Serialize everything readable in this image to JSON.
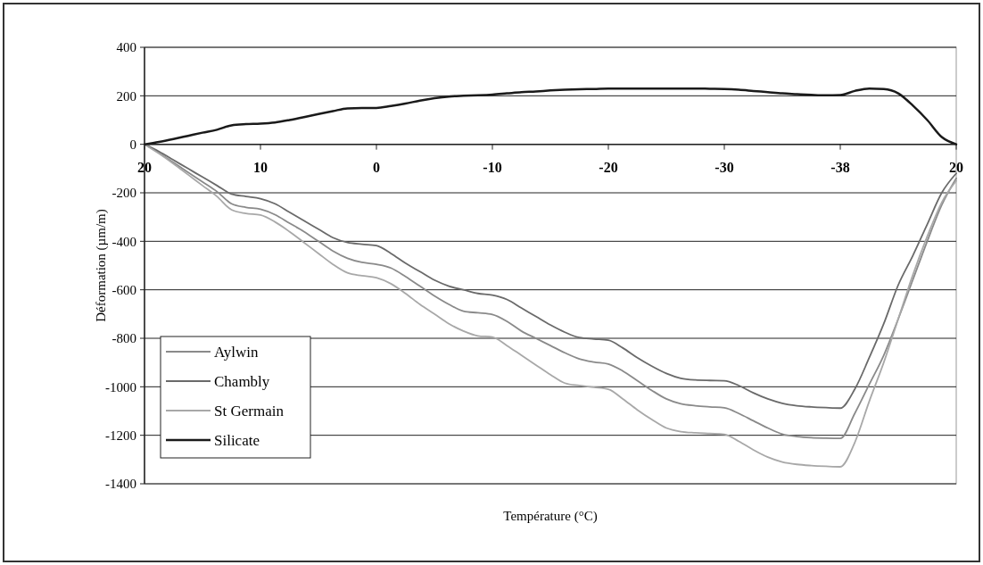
{
  "chart_data": {
    "type": "line",
    "xlabel": "Température (°C)",
    "ylabel": "Déformation (µm/m)",
    "categories": [
      "20",
      null,
      null,
      null,
      null,
      null,
      null,
      null,
      "10",
      null,
      null,
      null,
      null,
      null,
      null,
      null,
      "0",
      null,
      null,
      null,
      null,
      null,
      null,
      null,
      "-10",
      null,
      null,
      null,
      null,
      null,
      null,
      null,
      "-20",
      null,
      null,
      null,
      null,
      null,
      null,
      null,
      "-30",
      null,
      null,
      null,
      null,
      null,
      null,
      null,
      "-38",
      null,
      null,
      null,
      null,
      null,
      null,
      null,
      "20"
    ],
    "ylim": [
      -1400,
      400
    ],
    "yticks": [
      -1400,
      -1200,
      -1000,
      -800,
      -600,
      -400,
      -200,
      0,
      200,
      400
    ],
    "grid": "y",
    "legend": "bottom left",
    "series": [
      {
        "name": "Aylwin",
        "color": "#8a8a8a",
        "values": [
          0,
          -35,
          -75,
          -115,
          -155,
          -195,
          -245,
          -260,
          -268,
          -290,
          -325,
          -360,
          -400,
          -440,
          -470,
          -487,
          -495,
          -510,
          -545,
          -585,
          -625,
          -660,
          -688,
          -695,
          -702,
          -730,
          -770,
          -800,
          -830,
          -860,
          -885,
          -898,
          -906,
          -935,
          -975,
          -1015,
          -1050,
          -1070,
          -1078,
          -1083,
          -1087,
          -1110,
          -1140,
          -1170,
          -1195,
          -1205,
          -1210,
          -1212,
          -1213,
          -1110,
          -990,
          -870,
          -720,
          -560,
          -400,
          -250,
          -140
        ]
      },
      {
        "name": "Chambly",
        "color": "#6a6a6a",
        "values": [
          0,
          -30,
          -65,
          -100,
          -135,
          -170,
          -205,
          -215,
          -224,
          -245,
          -280,
          -315,
          -350,
          -385,
          -405,
          -412,
          -418,
          -450,
          -490,
          -525,
          -560,
          -585,
          -600,
          -615,
          -622,
          -640,
          -675,
          -710,
          -745,
          -775,
          -797,
          -803,
          -808,
          -840,
          -880,
          -915,
          -945,
          -965,
          -972,
          -974,
          -975,
          -995,
          -1025,
          -1050,
          -1068,
          -1078,
          -1083,
          -1086,
          -1088,
          -1010,
          -880,
          -740,
          -580,
          -460,
          -330,
          -200,
          -120
        ]
      },
      {
        "name": "St Germain",
        "color": "#a8a8a8",
        "values": [
          0,
          -38,
          -80,
          -125,
          -170,
          -215,
          -270,
          -285,
          -292,
          -320,
          -360,
          -405,
          -450,
          -495,
          -530,
          -542,
          -550,
          -575,
          -615,
          -660,
          -700,
          -740,
          -770,
          -790,
          -795,
          -830,
          -870,
          -910,
          -950,
          -985,
          -995,
          -1002,
          -1010,
          -1050,
          -1095,
          -1135,
          -1170,
          -1185,
          -1190,
          -1193,
          -1196,
          -1225,
          -1260,
          -1290,
          -1310,
          -1320,
          -1325,
          -1328,
          -1330,
          -1230,
          -1060,
          -900,
          -720,
          -540,
          -380,
          -240,
          -150
        ]
      },
      {
        "name": "Silicate",
        "color": "#1a1a1a",
        "values": [
          0,
          10,
          22,
          35,
          48,
          60,
          78,
          83,
          85,
          90,
          100,
          112,
          125,
          137,
          148,
          150,
          150,
          158,
          168,
          180,
          190,
          197,
          200,
          202,
          205,
          210,
          215,
          218,
          222,
          225,
          227,
          228,
          230,
          230,
          230,
          230,
          230,
          230,
          230,
          229,
          228,
          225,
          220,
          215,
          210,
          207,
          204,
          202,
          203,
          220,
          230,
          228,
          210,
          160,
          100,
          30,
          0
        ]
      }
    ]
  }
}
